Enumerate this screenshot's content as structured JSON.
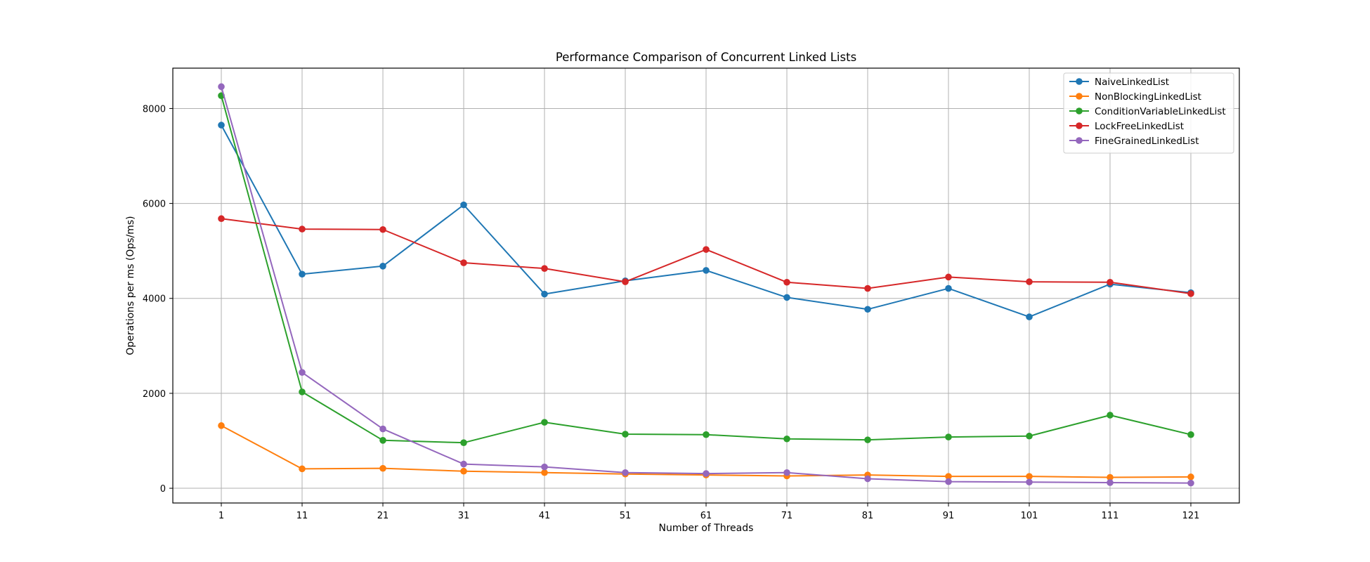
{
  "chart_data": {
    "type": "line",
    "title": "Performance Comparison of Concurrent Linked Lists",
    "xlabel": "Number of Threads",
    "ylabel": "Operations per ms (Ops/ms)",
    "x": [
      1,
      11,
      21,
      31,
      41,
      51,
      61,
      71,
      81,
      91,
      101,
      111,
      121
    ],
    "xlim": [
      -5,
      127
    ],
    "ylim": [
      -310,
      8850
    ],
    "yticks": [
      0,
      2000,
      4000,
      6000,
      8000
    ],
    "grid": true,
    "legend_position": "top-right",
    "series": [
      {
        "name": "NaiveLinkedList",
        "color": "#1f77b4",
        "values": [
          7650,
          4510,
          4680,
          5970,
          4090,
          4370,
          4590,
          4020,
          3770,
          4210,
          3610,
          4300,
          4120
        ]
      },
      {
        "name": "NonBlockingLinkedList",
        "color": "#ff7f0e",
        "values": [
          1320,
          410,
          420,
          360,
          330,
          300,
          280,
          260,
          280,
          250,
          250,
          230,
          240
        ]
      },
      {
        "name": "ConditionVariableLinkedList",
        "color": "#2ca02c",
        "values": [
          8270,
          2030,
          1010,
          960,
          1390,
          1140,
          1130,
          1040,
          1020,
          1080,
          1100,
          1540,
          1130
        ]
      },
      {
        "name": "LockFreeLinkedList",
        "color": "#d62728",
        "values": [
          5680,
          5460,
          5450,
          4750,
          4630,
          4350,
          5030,
          4340,
          4210,
          4450,
          4350,
          4340,
          4100
        ]
      },
      {
        "name": "FineGrainedLinkedList",
        "color": "#9467bd",
        "values": [
          8460,
          2440,
          1250,
          510,
          450,
          330,
          310,
          330,
          200,
          140,
          130,
          120,
          110
        ]
      }
    ]
  }
}
